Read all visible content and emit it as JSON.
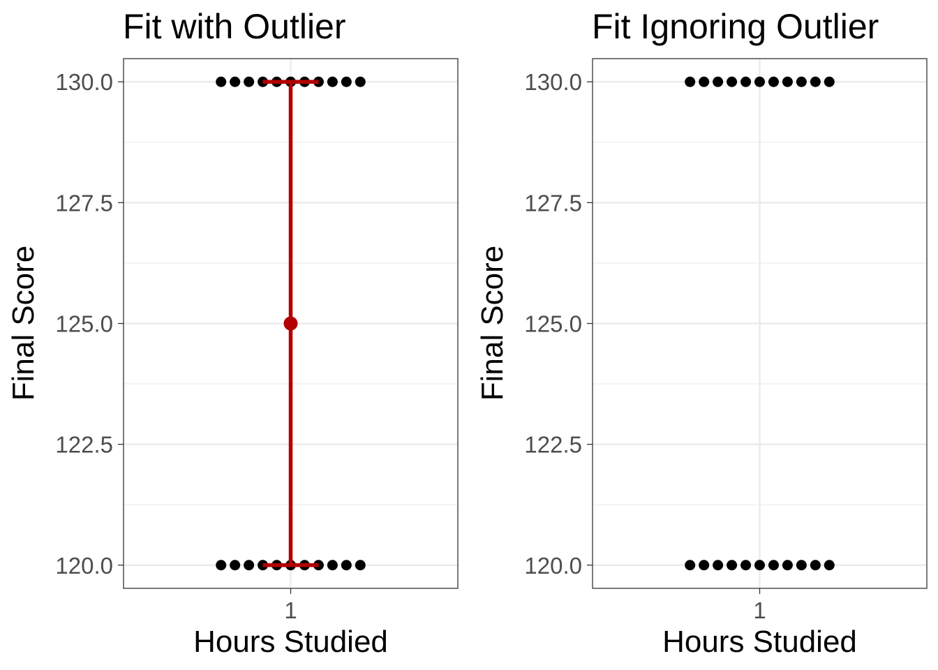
{
  "chart_data": [
    {
      "type": "scatter",
      "title": "Fit with Outlier",
      "xlabel": "Hours Studied",
      "ylabel": "Final Score",
      "x_categories": [
        "1"
      ],
      "ylim": [
        119.52,
        130.48
      ],
      "yticks": [
        "120.0",
        "122.5",
        "125.0",
        "127.5",
        "130.0"
      ],
      "grid": true,
      "points": [
        {
          "x": 0.75,
          "y": 120
        },
        {
          "x": 0.8,
          "y": 120
        },
        {
          "x": 0.85,
          "y": 120
        },
        {
          "x": 0.9,
          "y": 120
        },
        {
          "x": 0.95,
          "y": 120
        },
        {
          "x": 1.0,
          "y": 120
        },
        {
          "x": 1.05,
          "y": 120
        },
        {
          "x": 1.1,
          "y": 120
        },
        {
          "x": 1.15,
          "y": 120
        },
        {
          "x": 1.2,
          "y": 120
        },
        {
          "x": 1.25,
          "y": 120
        },
        {
          "x": 0.75,
          "y": 130
        },
        {
          "x": 0.8,
          "y": 130
        },
        {
          "x": 0.85,
          "y": 130
        },
        {
          "x": 0.9,
          "y": 130
        },
        {
          "x": 0.95,
          "y": 130
        },
        {
          "x": 1.0,
          "y": 130
        },
        {
          "x": 1.05,
          "y": 130
        },
        {
          "x": 1.1,
          "y": 130
        },
        {
          "x": 1.15,
          "y": 130
        },
        {
          "x": 1.2,
          "y": 130
        },
        {
          "x": 1.25,
          "y": 130
        }
      ],
      "summary": {
        "x": 1,
        "mean": 125,
        "ymin": 120,
        "ymax": 130,
        "color": "#b30000"
      }
    },
    {
      "type": "scatter",
      "title": "Fit Ignoring Outlier",
      "xlabel": "Hours Studied",
      "ylabel": "Final Score",
      "x_categories": [
        "1"
      ],
      "ylim": [
        119.52,
        130.48
      ],
      "yticks": [
        "120.0",
        "122.5",
        "125.0",
        "127.5",
        "130.0"
      ],
      "grid": true,
      "points": [
        {
          "x": 0.75,
          "y": 120
        },
        {
          "x": 0.8,
          "y": 120
        },
        {
          "x": 0.85,
          "y": 120
        },
        {
          "x": 0.9,
          "y": 120
        },
        {
          "x": 0.95,
          "y": 120
        },
        {
          "x": 1.0,
          "y": 120
        },
        {
          "x": 1.05,
          "y": 120
        },
        {
          "x": 1.1,
          "y": 120
        },
        {
          "x": 1.15,
          "y": 120
        },
        {
          "x": 1.2,
          "y": 120
        },
        {
          "x": 1.25,
          "y": 120
        },
        {
          "x": 0.75,
          "y": 130
        },
        {
          "x": 0.8,
          "y": 130
        },
        {
          "x": 0.85,
          "y": 130
        },
        {
          "x": 0.9,
          "y": 130
        },
        {
          "x": 0.95,
          "y": 130
        },
        {
          "x": 1.0,
          "y": 130
        },
        {
          "x": 1.05,
          "y": 130
        },
        {
          "x": 1.1,
          "y": 130
        },
        {
          "x": 1.15,
          "y": 130
        },
        {
          "x": 1.2,
          "y": 130
        },
        {
          "x": 1.25,
          "y": 130
        }
      ]
    }
  ]
}
